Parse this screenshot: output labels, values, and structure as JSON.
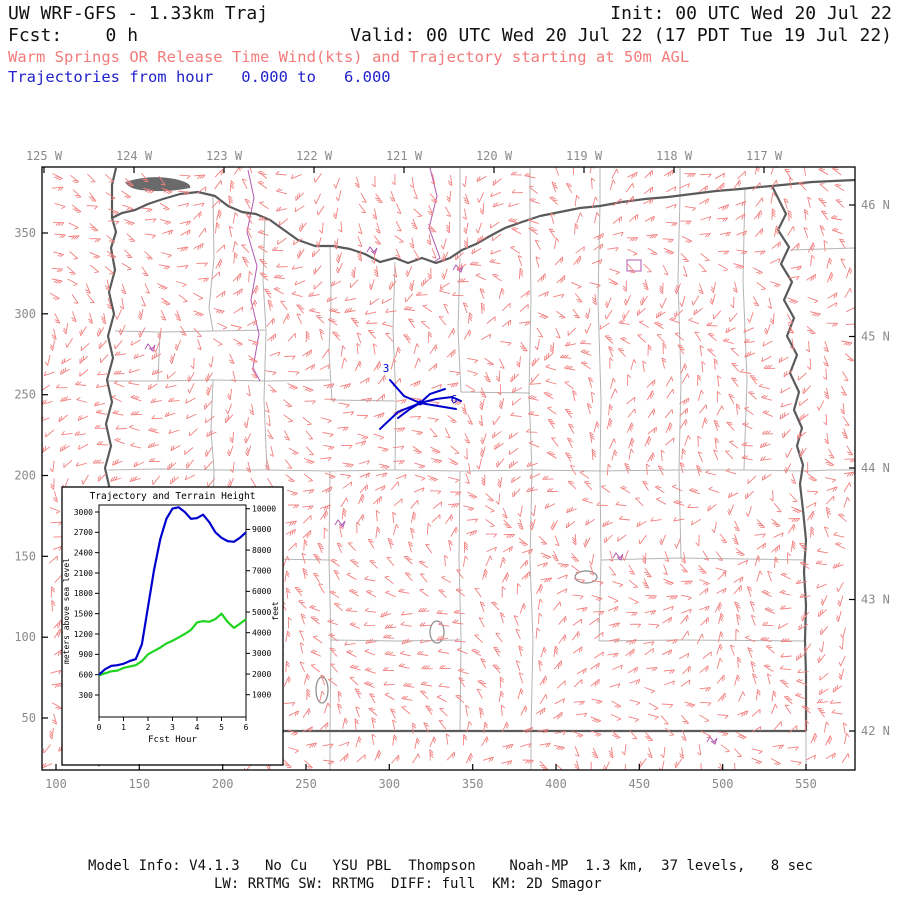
{
  "header": {
    "model_title": "UW WRF-GFS - 1.33km Traj",
    "init": "Init: 00 UTC Wed 20 Jul 22",
    "fcst": "Fcst:    0 h",
    "valid": "Valid: 00 UTC Wed 20 Jul 22 (17 PDT Tue 19 Jul 22)",
    "subtitle_red": "Warm Springs OR Release Time Wind(kts) and Trajectory starting at 50m AGL",
    "subtitle_blue": "Trajectories from hour   0.000 to   6.000"
  },
  "map": {
    "top_axis_labels": [
      "125 W",
      "124 W",
      "123 W",
      "122 W",
      "121 W",
      "120 W",
      "119 W",
      "118 W",
      "117 W"
    ],
    "right_axis_labels": [
      "46 N",
      "45 N",
      "44 N",
      "43 N",
      "42 N"
    ],
    "left_axis_labels": [
      "350",
      "300",
      "250",
      "200",
      "150",
      "100",
      "50"
    ],
    "bottom_axis_labels": [
      "100",
      "150",
      "200",
      "250",
      "300",
      "350",
      "400",
      "450",
      "500",
      "550"
    ],
    "trajectory_hour_labels": [
      "3",
      "6"
    ],
    "colors": {
      "wind_barbs": "#f28080",
      "trajectory": "#0000cd",
      "state_border": "#5a5a5a",
      "county_border": "#b5b5b5",
      "urban_features": "#b058b0",
      "water_features": "#8a8a8a",
      "axis_labels": "#8a8a8a"
    }
  },
  "chart_data": {
    "type": "line",
    "title": "Trajectory and Terrain Height",
    "xlabel": "Fcst Hour",
    "ylabel_left": "meters above sea level",
    "ylabel_right": "feet",
    "xlim": [
      0,
      6
    ],
    "ylim_left_m": [
      0,
      3100
    ],
    "x_ticks": [
      0,
      1,
      2,
      3,
      4,
      5,
      6
    ],
    "y_left_ticks": [
      300,
      600,
      900,
      1200,
      1500,
      1800,
      2100,
      2400,
      2700,
      3000
    ],
    "y_right_ticks": [
      1000,
      2000,
      3000,
      4000,
      5000,
      6000,
      7000,
      8000,
      9000,
      10000
    ],
    "x": [
      0,
      0.25,
      0.5,
      0.75,
      1,
      1.25,
      1.5,
      1.75,
      2,
      2.25,
      2.5,
      2.75,
      3,
      3.25,
      3.5,
      3.75,
      4,
      4.25,
      4.5,
      4.75,
      5,
      5.25,
      5.5,
      5.75,
      6
    ],
    "series": [
      {
        "name": "trajectory-height-m",
        "color": "#0000cd",
        "values": [
          600,
          680,
          730,
          740,
          760,
          800,
          830,
          1050,
          1600,
          2150,
          2600,
          2900,
          3050,
          3070,
          3000,
          2900,
          2910,
          2960,
          2850,
          2700,
          2620,
          2570,
          2560,
          2620,
          2700
        ]
      },
      {
        "name": "terrain-height-m",
        "color": "#1fd41f",
        "values": [
          590,
          620,
          650,
          660,
          700,
          720,
          740,
          800,
          900,
          950,
          1000,
          1060,
          1100,
          1150,
          1200,
          1260,
          1370,
          1390,
          1380,
          1420,
          1500,
          1380,
          1290,
          1350,
          1420
        ]
      }
    ],
    "legend": "off",
    "grid": "off"
  },
  "footer": {
    "line1": "Model Info: V4.1.3   No Cu   YSU PBL  Thompson    Noah-MP  1.3 km,  37 levels,   8 sec",
    "line2": "LW: RRTMG SW: RRTMG  DIFF: full  KM: 2D Smagor"
  }
}
